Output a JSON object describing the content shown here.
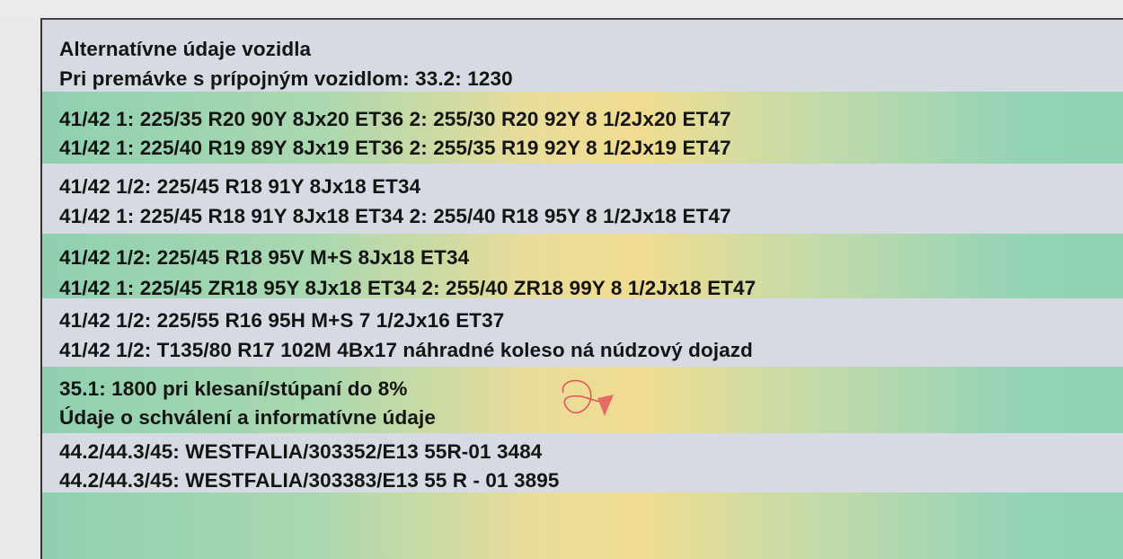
{
  "document": {
    "lines": [
      "Alternatívne údaje vozidla",
      "Pri premávke s prípojným vozidlom: 33.2: 1230",
      "41/42  1: 225/35 R20 90Y 8Jx20 ET36 2: 255/30 R20 92Y 8 1/2Jx20 ET47",
      "41/42  1: 225/40 R19 89Y 8Jx19 ET36 2: 255/35 R19 92Y 8 1/2Jx19 ET47",
      "41/42  1/2: 225/45 R18 91Y 8Jx18 ET34",
      "41/42  1: 225/45 R18 91Y 8Jx18 ET34 2: 255/40 R18 95Y 8 1/2Jx18 ET47",
      "41/42  1/2: 225/45 R18 95V M+S 8Jx18 ET34",
      "41/42  1: 225/45 ZR18 95Y 8Jx18 ET34 2: 255/40 ZR18 99Y 8 1/2Jx18 ET47",
      "41/42  1/2: 225/55 R16 95H M+S 7 1/2Jx16 ET37",
      "41/42 1/2: T135/80 R17 102M 4Bx17 náhradné koleso ná núdzový dojazd",
      "35.1: 1800 pri klesaní/stúpaní do 8%",
      "Údaje o schválení a informatívne údaje",
      "44.2/44.3/45: WESTFALIA/303352/E13 55R-01 3484",
      "44.2/44.3/45: WESTFALIA/303383/E13 55 R - 01 3895"
    ]
  },
  "colors": {
    "text": "#141414",
    "band_green": "#8fd0b0",
    "band_yellow": "#f0dc90",
    "background": "#d6dbe3",
    "ink_mark": "#e0505a"
  }
}
